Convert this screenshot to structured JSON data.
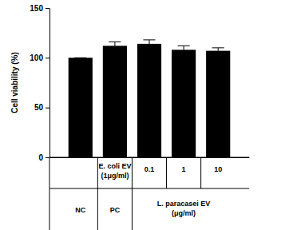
{
  "chart_data": {
    "type": "bar",
    "y_label": "Cell viability (%)",
    "categories": [
      null,
      "E. coli EV (1μg/ml)",
      "0.1",
      "1",
      "10"
    ],
    "values": [
      100,
      112,
      114,
      108,
      107
    ],
    "errors": [
      0,
      4,
      4,
      4,
      3
    ],
    "color": "#000000",
    "ylim": [
      0,
      150
    ],
    "yticks": [
      0,
      50,
      100,
      150
    ],
    "groups": [
      {
        "label": "NC",
        "size": 1
      },
      {
        "label": "PC",
        "size": 1
      },
      {
        "label": "L. paracasei EV (μg/ml)",
        "size": 3
      }
    ]
  }
}
